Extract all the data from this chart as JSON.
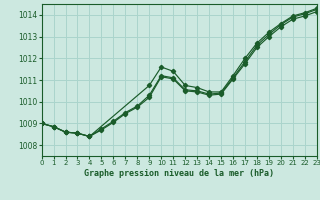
{
  "title": "Graphe pression niveau de la mer (hPa)",
  "x_min": 0,
  "x_max": 23,
  "y_min": 1007.5,
  "y_max": 1014.5,
  "y_ticks": [
    1008,
    1009,
    1010,
    1011,
    1012,
    1013,
    1014
  ],
  "x_ticks": [
    0,
    1,
    2,
    3,
    4,
    5,
    6,
    7,
    8,
    9,
    10,
    11,
    12,
    13,
    14,
    15,
    16,
    17,
    18,
    19,
    20,
    21,
    22,
    23
  ],
  "background_color": "#cce8e0",
  "grid_color": "#aad4cc",
  "line_color": "#1a5c2a",
  "series1": {
    "x": [
      0,
      1,
      2,
      3,
      4,
      5,
      6,
      7,
      8,
      9,
      10,
      11,
      12,
      13,
      14,
      15,
      16,
      17,
      18,
      19,
      20,
      21,
      22,
      23
    ],
    "y": [
      1009.0,
      1008.85,
      1008.6,
      1008.55,
      1008.4,
      1008.7,
      1009.05,
      1009.45,
      1009.75,
      1010.2,
      1011.15,
      1011.05,
      1010.5,
      1010.45,
      1010.3,
      1010.35,
      1011.05,
      1011.75,
      1012.5,
      1013.0,
      1013.45,
      1013.8,
      1013.95,
      1014.15
    ]
  },
  "series2": {
    "x": [
      0,
      1,
      2,
      3,
      4,
      5,
      6,
      7,
      8,
      9,
      10,
      11,
      12,
      13,
      14,
      15,
      16,
      17,
      18,
      19,
      20,
      21,
      22,
      23
    ],
    "y": [
      1009.0,
      1008.85,
      1008.6,
      1008.55,
      1008.4,
      1008.75,
      1009.1,
      1009.5,
      1009.8,
      1010.3,
      1011.2,
      1011.1,
      1010.55,
      1010.5,
      1010.35,
      1010.4,
      1011.1,
      1011.85,
      1012.6,
      1013.1,
      1013.55,
      1013.9,
      1014.05,
      1014.25
    ]
  },
  "series3": {
    "x": [
      0,
      1,
      2,
      3,
      4,
      9,
      10,
      11,
      12,
      13,
      14,
      15,
      16,
      17,
      18,
      19,
      20,
      21,
      22,
      23
    ],
    "y": [
      1009.0,
      1008.85,
      1008.6,
      1008.55,
      1008.4,
      1010.75,
      1011.6,
      1011.4,
      1010.75,
      1010.65,
      1010.45,
      1010.45,
      1011.2,
      1012.0,
      1012.7,
      1013.2,
      1013.6,
      1013.95,
      1014.1,
      1014.3
    ]
  }
}
